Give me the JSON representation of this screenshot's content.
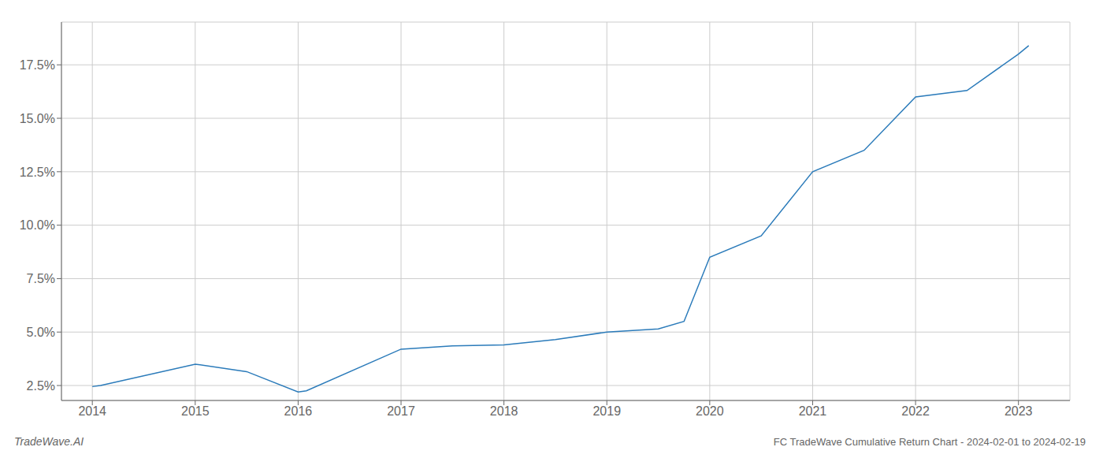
{
  "chart_data": {
    "type": "line",
    "title": "FC TradeWave Cumulative Return Chart - 2024-02-01 to 2024-02-19",
    "annotations": [
      "TradeWave.AI"
    ],
    "x": [
      2014.0,
      2014.08,
      2015.0,
      2015.5,
      2016.0,
      2016.08,
      2017.0,
      2017.5,
      2018.0,
      2018.5,
      2019.0,
      2019.5,
      2019.75,
      2020.0,
      2020.5,
      2021.0,
      2021.5,
      2022.0,
      2022.5,
      2023.0,
      2023.1
    ],
    "values": [
      2.45,
      2.5,
      3.5,
      3.15,
      2.2,
      2.25,
      4.2,
      4.35,
      4.4,
      4.65,
      5.0,
      5.15,
      5.5,
      8.5,
      9.5,
      12.5,
      13.5,
      16.0,
      16.3,
      18.0,
      18.4
    ],
    "color": "#2b7bba",
    "xlim": [
      2013.7,
      2023.5
    ],
    "ylim": [
      1.8,
      19.5
    ],
    "xticks": [
      2014,
      2015,
      2016,
      2017,
      2018,
      2019,
      2020,
      2021,
      2022,
      2023
    ],
    "yticks": [
      {
        "value": 2.5,
        "label": "2.5%"
      },
      {
        "value": 5.0,
        "label": "5.0%"
      },
      {
        "value": 7.5,
        "label": "7.5%"
      },
      {
        "value": 10.0,
        "label": "10.0%"
      },
      {
        "value": 12.5,
        "label": "12.5%"
      },
      {
        "value": 15.0,
        "label": "15.0%"
      },
      {
        "value": 17.5,
        "label": "17.5%"
      }
    ],
    "grid": true
  }
}
